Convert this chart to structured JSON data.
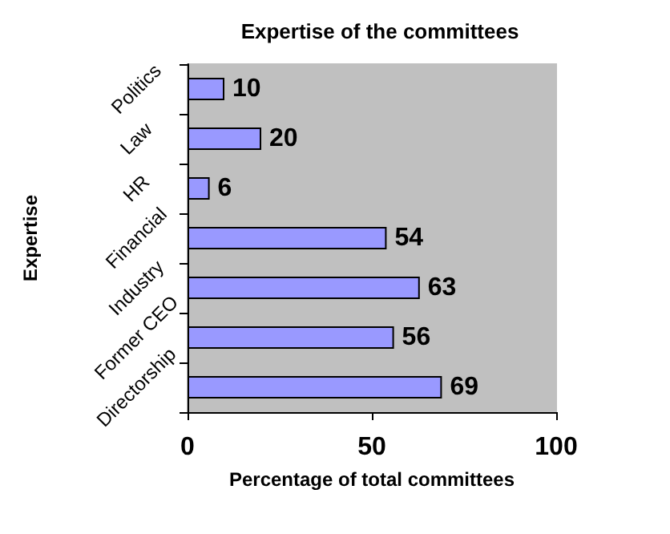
{
  "chart_data": {
    "type": "bar",
    "orientation": "horizontal",
    "title": "Expertise of the committees",
    "xlabel": "Percentage of total committees",
    "ylabel": "Expertise",
    "categories": [
      "Politics",
      "Law",
      "HR",
      "Financial",
      "Industry",
      "Former CEO",
      "Directorship"
    ],
    "values": [
      10,
      20,
      6,
      54,
      63,
      56,
      69
    ],
    "color": "#9999ff",
    "data_labels": true,
    "xlim": [
      0,
      100
    ],
    "xticks": [
      0,
      50,
      100
    ],
    "grid": false
  }
}
